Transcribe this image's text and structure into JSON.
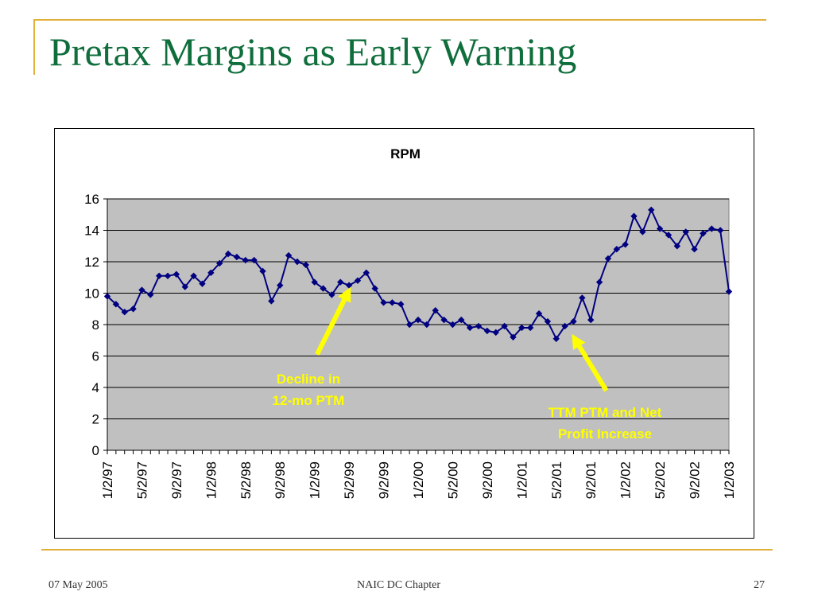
{
  "slide": {
    "title": "Pretax Margins as Early Warning",
    "footer_date": "07 May 2005",
    "footer_center": "NAIC DC Chapter",
    "page_number": "27"
  },
  "colors": {
    "title": "#0f6e3c",
    "frame_accent": "#e2b13c",
    "plot_background": "#c0c0c0",
    "series": "#000080",
    "annotation": "#ffff00"
  },
  "chart_data": {
    "type": "line",
    "title": "RPM",
    "xlabel": "",
    "ylabel": "",
    "ylim": [
      0,
      16
    ],
    "yticks": [
      0,
      2,
      4,
      6,
      8,
      10,
      12,
      14,
      16
    ],
    "grid": "horizontal",
    "legend": "none",
    "marker": "diamond",
    "x_tick_labels": [
      "1/2/97",
      "5/2/97",
      "9/2/97",
      "1/2/98",
      "5/2/98",
      "9/2/98",
      "1/2/99",
      "5/2/99",
      "9/2/99",
      "1/2/00",
      "5/2/00",
      "9/2/00",
      "1/2/01",
      "5/2/01",
      "9/2/01",
      "1/2/02",
      "5/2/02",
      "9/2/02",
      "1/2/03"
    ],
    "x_tick_every": 4,
    "series": [
      {
        "values": [
          9.8,
          9.3,
          8.8,
          9.0,
          10.2,
          9.9,
          11.1,
          11.1,
          11.2,
          10.4,
          11.1,
          10.6,
          11.3,
          11.9,
          12.5,
          12.3,
          12.1,
          12.1,
          11.4,
          9.5,
          10.5,
          12.4,
          12.0,
          11.8,
          10.7,
          10.3,
          9.9,
          10.7,
          10.5,
          10.8,
          11.3,
          10.3,
          9.4,
          9.4,
          9.3,
          8.0,
          8.3,
          8.0,
          8.9,
          8.3,
          8.0,
          8.3,
          7.8,
          7.9,
          7.6,
          7.5,
          7.9,
          7.2,
          7.8,
          7.8,
          8.7,
          8.2,
          7.1,
          7.9,
          8.2,
          9.7,
          8.3,
          10.7,
          12.2,
          12.8,
          13.1,
          14.9,
          13.9,
          15.3,
          14.1,
          13.7,
          13.0,
          13.9,
          12.8,
          13.8,
          14.1,
          14.0,
          10.1
        ]
      }
    ],
    "annotations": [
      {
        "lines": [
          "Decline in",
          "12-mo PTM"
        ],
        "arrow_from": [
          24.3,
          6.1
        ],
        "arrow_to": [
          28.2,
          10.4
        ]
      },
      {
        "lines": [
          "TTM PTM and Net",
          "Profit Increase"
        ],
        "arrow_from": [
          57.8,
          3.8
        ],
        "arrow_to": [
          53.8,
          7.4
        ]
      }
    ]
  }
}
